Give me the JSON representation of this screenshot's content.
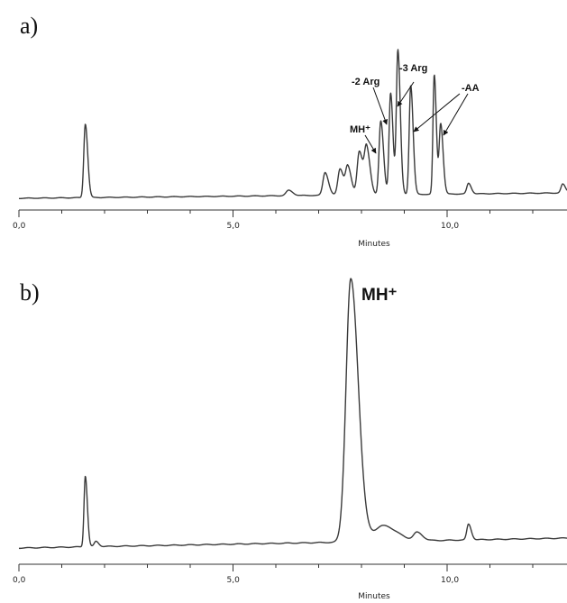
{
  "chart_data": [
    {
      "type": "line",
      "panel_label": "a)",
      "xlabel": "Minutes",
      "xlim": [
        0,
        12.8
      ],
      "x_ticks": [
        "0,0",
        "5,0",
        "10,0"
      ],
      "x_tick_values": [
        0,
        5,
        10
      ],
      "peaks": [
        {
          "x": 1.55,
          "height": 0.42,
          "width": 0.035
        },
        {
          "x": 6.3,
          "height": 0.03,
          "width": 0.06
        },
        {
          "x": 7.15,
          "height": 0.13,
          "width": 0.05
        },
        {
          "x": 7.5,
          "height": 0.15,
          "width": 0.05
        },
        {
          "x": 7.68,
          "height": 0.16,
          "width": 0.05
        },
        {
          "x": 7.95,
          "height": 0.25,
          "width": 0.05
        },
        {
          "x": 8.12,
          "height": 0.26,
          "width": 0.05
        },
        {
          "x": 8.45,
          "height": 0.42,
          "width": 0.04
        },
        {
          "x": 8.68,
          "height": 0.58,
          "width": 0.035
        },
        {
          "x": 8.85,
          "height": 0.82,
          "width": 0.035
        },
        {
          "x": 9.15,
          "height": 0.62,
          "width": 0.035
        },
        {
          "x": 9.7,
          "height": 0.68,
          "width": 0.03
        },
        {
          "x": 9.85,
          "height": 0.4,
          "width": 0.035
        },
        {
          "x": 10.5,
          "height": 0.06,
          "width": 0.04
        },
        {
          "x": 12.7,
          "height": 0.05,
          "width": 0.04
        }
      ],
      "annotations": [
        {
          "text": "MH⁺",
          "x": 8.45
        },
        {
          "text": "-2 Arg",
          "x": 8.68
        },
        {
          "text": "-3 Arg",
          "x": 8.85
        },
        {
          "text": "-AA",
          "x": 9.7
        }
      ]
    },
    {
      "type": "line",
      "panel_label": "b)",
      "xlabel": "Minutes",
      "xlim": [
        0,
        12.8
      ],
      "x_ticks": [
        "0,0",
        "5,0",
        "10,0"
      ],
      "x_tick_values": [
        0,
        5,
        10
      ],
      "peaks": [
        {
          "x": 1.55,
          "height": 0.27,
          "width": 0.03
        },
        {
          "x": 1.8,
          "height": 0.02,
          "width": 0.04
        },
        {
          "x": 7.75,
          "height": 1.0,
          "width": 0.11
        },
        {
          "x": 8.5,
          "height": 0.06,
          "width": 0.2
        },
        {
          "x": 9.3,
          "height": 0.03,
          "width": 0.08
        },
        {
          "x": 10.5,
          "height": 0.06,
          "width": 0.04
        }
      ],
      "annotations": [
        {
          "text": "MH⁺",
          "x": 7.75
        }
      ]
    }
  ]
}
